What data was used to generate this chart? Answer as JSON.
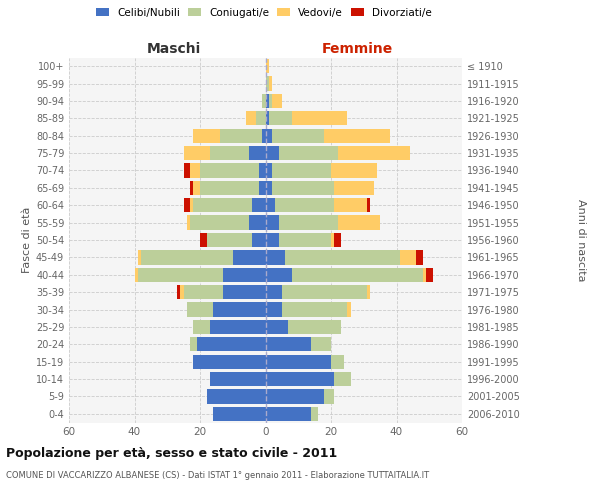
{
  "age_groups": [
    "0-4",
    "5-9",
    "10-14",
    "15-19",
    "20-24",
    "25-29",
    "30-34",
    "35-39",
    "40-44",
    "45-49",
    "50-54",
    "55-59",
    "60-64",
    "65-69",
    "70-74",
    "75-79",
    "80-84",
    "85-89",
    "90-94",
    "95-99",
    "100+"
  ],
  "birth_years": [
    "2006-2010",
    "2001-2005",
    "1996-2000",
    "1991-1995",
    "1986-1990",
    "1981-1985",
    "1976-1980",
    "1971-1975",
    "1966-1970",
    "1961-1965",
    "1956-1960",
    "1951-1955",
    "1946-1950",
    "1941-1945",
    "1936-1940",
    "1931-1935",
    "1926-1930",
    "1921-1925",
    "1916-1920",
    "1911-1915",
    "≤ 1910"
  ],
  "colors": {
    "celibi": "#4472C4",
    "coniugati": "#BCCF9A",
    "vedovi": "#FFCC66",
    "divorziati": "#CC1100",
    "background": "#f5f5f5",
    "grid": "#cccccc"
  },
  "maschi": {
    "celibi": [
      16,
      18,
      17,
      22,
      21,
      17,
      16,
      13,
      13,
      10,
      4,
      5,
      4,
      2,
      2,
      5,
      1,
      0,
      0,
      0,
      0
    ],
    "coniugati": [
      0,
      0,
      0,
      0,
      2,
      5,
      8,
      12,
      26,
      28,
      14,
      18,
      18,
      18,
      18,
      12,
      13,
      3,
      1,
      0,
      0
    ],
    "vedovi": [
      0,
      0,
      0,
      0,
      0,
      0,
      0,
      1,
      1,
      1,
      0,
      1,
      1,
      2,
      3,
      8,
      8,
      3,
      0,
      0,
      0
    ],
    "divorziati": [
      0,
      0,
      0,
      0,
      0,
      0,
      0,
      1,
      0,
      0,
      2,
      0,
      2,
      1,
      2,
      0,
      0,
      0,
      0,
      0,
      0
    ]
  },
  "femmine": {
    "celibi": [
      14,
      18,
      21,
      20,
      14,
      7,
      5,
      5,
      8,
      6,
      4,
      4,
      3,
      2,
      2,
      4,
      2,
      1,
      1,
      0,
      0
    ],
    "coniugati": [
      2,
      3,
      5,
      4,
      6,
      16,
      20,
      26,
      40,
      35,
      16,
      18,
      18,
      19,
      18,
      18,
      16,
      7,
      1,
      1,
      0
    ],
    "vedovi": [
      0,
      0,
      0,
      0,
      0,
      0,
      1,
      1,
      1,
      5,
      1,
      13,
      10,
      12,
      14,
      22,
      20,
      17,
      3,
      1,
      1
    ],
    "divorziati": [
      0,
      0,
      0,
      0,
      0,
      0,
      0,
      0,
      2,
      2,
      2,
      0,
      1,
      0,
      0,
      0,
      0,
      0,
      0,
      0,
      0
    ]
  },
  "xlim": 60,
  "title": "Popolazione per età, sesso e stato civile - 2011",
  "subtitle": "COMUNE DI VACCARIZZO ALBANESE (CS) - Dati ISTAT 1° gennaio 2011 - Elaborazione TUTTAITALIA.IT",
  "ylabel_left": "Fasce di età",
  "ylabel_right": "Anni di nascita",
  "label_maschi": "Maschi",
  "label_femmine": "Femmine",
  "legend_labels": [
    "Celibi/Nubili",
    "Coniugati/e",
    "Vedovi/e",
    "Divorziati/e"
  ]
}
